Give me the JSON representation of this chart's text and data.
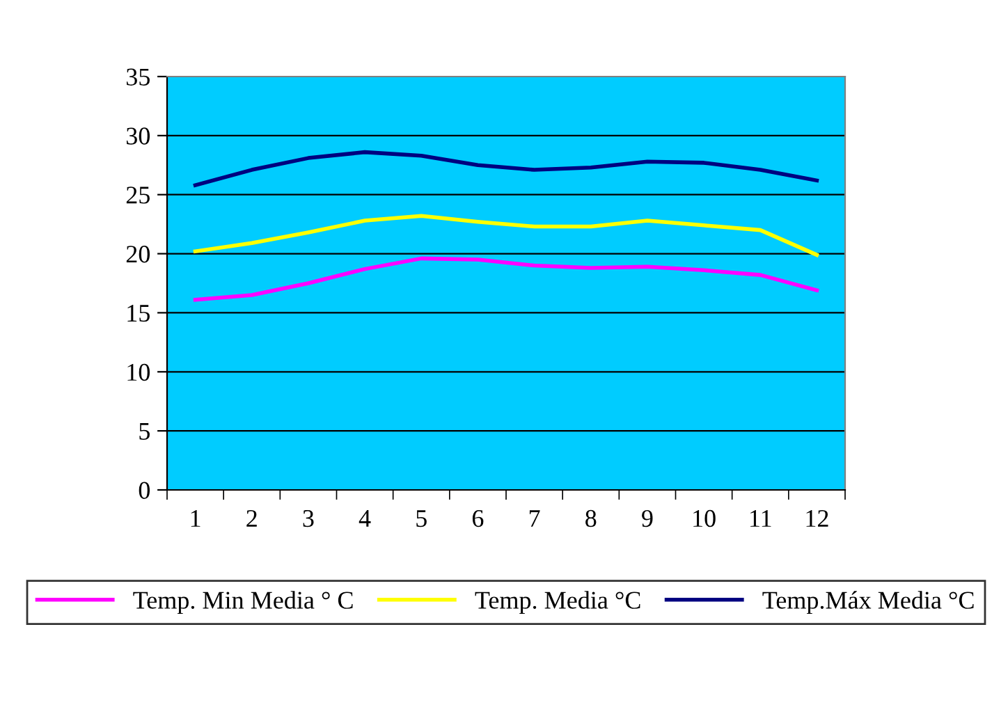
{
  "chart_data": {
    "type": "line",
    "categories": [
      "1",
      "2",
      "3",
      "4",
      "5",
      "6",
      "7",
      "8",
      "9",
      "10",
      "11",
      "12"
    ],
    "series": [
      {
        "name": "Temp. Min Media ° C",
        "color": "#ff00ff",
        "values": [
          16.1,
          16.5,
          17.5,
          18.7,
          19.6,
          19.5,
          19.0,
          18.8,
          18.9,
          18.6,
          18.2,
          16.9
        ]
      },
      {
        "name": "Temp. Media °C",
        "color": "#ffff00",
        "values": [
          20.2,
          20.9,
          21.8,
          22.8,
          23.2,
          22.7,
          22.3,
          22.3,
          22.8,
          22.4,
          22.0,
          19.9
        ]
      },
      {
        "name": "Temp.Máx Media °C",
        "color": "#000080",
        "values": [
          25.8,
          27.1,
          28.1,
          28.6,
          28.3,
          27.5,
          27.1,
          27.3,
          27.8,
          27.7,
          27.1,
          26.2
        ]
      }
    ],
    "ylim": [
      0,
      35
    ],
    "yticks": [
      0,
      5,
      10,
      15,
      20,
      25,
      30,
      35
    ],
    "grid": "y",
    "legend": "bottom",
    "marker": "none",
    "line_style": "solid"
  }
}
